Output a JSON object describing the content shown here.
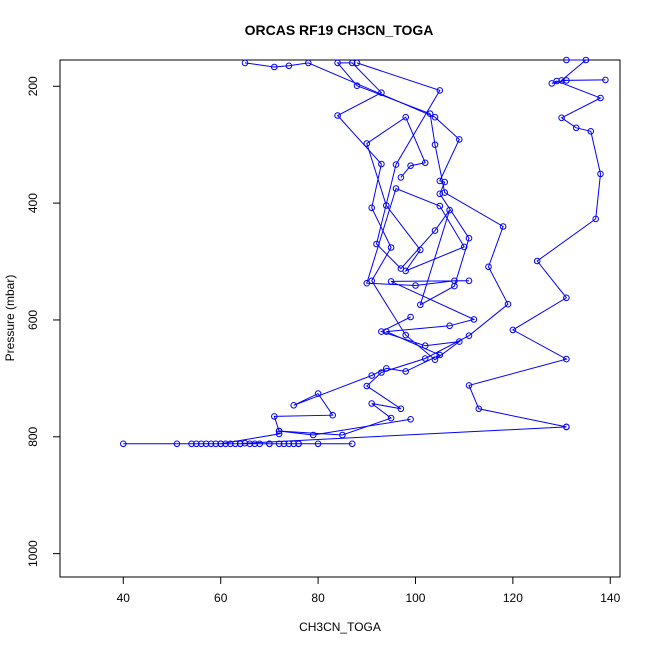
{
  "chart_data": {
    "type": "line",
    "title": "ORCAS RF19 CH3CN_TOGA",
    "xlabel": "CH3CN_TOGA",
    "ylabel": "Pressure (mbar)",
    "xlim": [
      27,
      142
    ],
    "ylim": [
      1040,
      155
    ],
    "y_reversed": true,
    "x_ticks": [
      40,
      60,
      80,
      100,
      120,
      140
    ],
    "y_ticks": [
      200,
      400,
      600,
      800,
      1000
    ],
    "grid": false,
    "legend": "none",
    "series_color": "#0000ff",
    "marker": "open-circle",
    "series": [
      {
        "points": [
          [
            131,
            783
          ],
          [
            65,
            811
          ],
          [
            64,
            812
          ],
          [
            63,
            812
          ],
          [
            62,
            812
          ],
          [
            61,
            812
          ],
          [
            60,
            812
          ],
          [
            59,
            812
          ],
          [
            58,
            812
          ],
          [
            57,
            812
          ],
          [
            56,
            812
          ],
          [
            55,
            812
          ],
          [
            54,
            812
          ],
          [
            51,
            812
          ],
          [
            40,
            812
          ],
          [
            64,
            812
          ],
          [
            66,
            812
          ],
          [
            67,
            812
          ],
          [
            68,
            812
          ],
          [
            70,
            812
          ],
          [
            72,
            812
          ],
          [
            73,
            812
          ],
          [
            74,
            812
          ],
          [
            75,
            812
          ],
          [
            76,
            812
          ],
          [
            80,
            812
          ],
          [
            87,
            812
          ],
          [
            76,
            812
          ],
          [
            70,
            812
          ],
          [
            60,
            812
          ],
          [
            72,
            795
          ],
          [
            72,
            790
          ],
          [
            85,
            797
          ],
          [
            95,
            768
          ],
          [
            91,
            743
          ],
          [
            97,
            752
          ],
          [
            90,
            713
          ],
          [
            93,
            690
          ],
          [
            102,
            666
          ],
          [
            111,
            627
          ],
          [
            119,
            573
          ],
          [
            115,
            509
          ],
          [
            118,
            440
          ],
          [
            106,
            382
          ],
          [
            104,
            300
          ],
          [
            103,
            247
          ],
          [
            88,
            199
          ],
          [
            84,
            160
          ],
          [
            87,
            160
          ],
          [
            93,
            211
          ],
          [
            84,
            250
          ],
          [
            93,
            333
          ],
          [
            91,
            408
          ],
          [
            95,
            476
          ],
          [
            91,
            533
          ],
          [
            98,
            626
          ],
          [
            104,
            668
          ],
          [
            109,
            637
          ],
          [
            102,
            644
          ],
          [
            93,
            620
          ],
          [
            99,
            595
          ]
        ]
      },
      {
        "points": [
          [
            88,
            160
          ],
          [
            105,
            207
          ],
          [
            96,
            334
          ],
          [
            92,
            470
          ],
          [
            97,
            512
          ],
          [
            104,
            447
          ],
          [
            107,
            412
          ],
          [
            101,
            574
          ],
          [
            108,
            542
          ],
          [
            111,
            460
          ],
          [
            105,
            384
          ],
          [
            106,
            364
          ],
          [
            105,
            362
          ],
          [
            109,
            291
          ],
          [
            104,
            253
          ],
          [
            78,
            160
          ],
          [
            74,
            165
          ],
          [
            71,
            167
          ],
          [
            65,
            160
          ]
        ]
      },
      {
        "points": [
          [
            97,
            356
          ],
          [
            99,
            336
          ],
          [
            102,
            331
          ],
          [
            98,
            253
          ],
          [
            90,
            298
          ],
          [
            94,
            404
          ],
          [
            101,
            480
          ],
          [
            98,
            516
          ],
          [
            110,
            475
          ],
          [
            105,
            405
          ],
          [
            96,
            375
          ],
          [
            90,
            537
          ],
          [
            100,
            541
          ],
          [
            108,
            533
          ],
          [
            111,
            533
          ],
          [
            95,
            534
          ],
          [
            112,
            599
          ],
          [
            107,
            610
          ],
          [
            94,
            620
          ],
          [
            105,
            660
          ],
          [
            98,
            688
          ],
          [
            94,
            683
          ],
          [
            91,
            695
          ],
          [
            75,
            746
          ],
          [
            80,
            726
          ],
          [
            83,
            763
          ],
          [
            71,
            765
          ],
          [
            72,
            790
          ],
          [
            79,
            797
          ],
          [
            99,
            770
          ]
        ]
      },
      {
        "points": [
          [
            131,
            783
          ],
          [
            113,
            752
          ],
          [
            111,
            712
          ],
          [
            131,
            667
          ],
          [
            120,
            617
          ],
          [
            131,
            562
          ],
          [
            125,
            499
          ],
          [
            137,
            427
          ],
          [
            138,
            350
          ],
          [
            136,
            277
          ],
          [
            133,
            271
          ],
          [
            130,
            254
          ],
          [
            138,
            220
          ],
          [
            129,
            191
          ],
          [
            128,
            195
          ],
          [
            131,
            190
          ],
          [
            139,
            189
          ],
          [
            130,
            190
          ],
          [
            135,
            155
          ],
          [
            131,
            155
          ]
        ]
      }
    ]
  }
}
